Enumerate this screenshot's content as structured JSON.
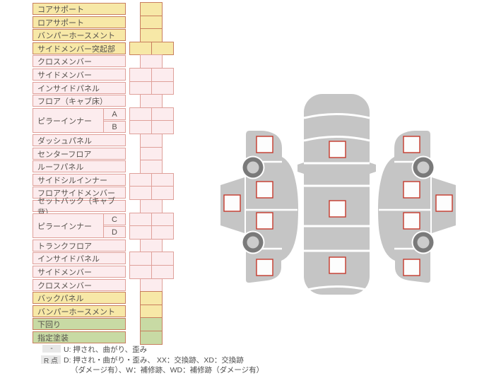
{
  "colors": {
    "yellow_bg": "#f7e8a7",
    "yellow_border": "#c87e5e",
    "pink_bg": "#fcecee",
    "pink_border": "#dfa09a",
    "green_bg": "#c8daa4",
    "green_border": "#c87e5e",
    "text": "#57524d",
    "checkpoint_border": "#c5392c",
    "car_gray": "#c5c5c5",
    "wheel_ring": "#7a7a7a",
    "wheel_hub": "#cccccc",
    "badge_bg": "#e8e8e8"
  },
  "checklist": {
    "rows": [
      {
        "label": "コアサポート",
        "color": "yellow",
        "cells": "single"
      },
      {
        "label": "ロアサポート",
        "color": "yellow",
        "cells": "single"
      },
      {
        "label": "バンパーホースメント",
        "color": "yellow",
        "cells": "single"
      },
      {
        "label": "サイドメンバー突起部",
        "color": "yellow",
        "cells": "double"
      },
      {
        "label": "クロスメンバー",
        "color": "pink",
        "cells": "single"
      },
      {
        "label": "サイドメンバー",
        "color": "pink",
        "cells": "double"
      },
      {
        "label": "インサイドパネル",
        "color": "pink",
        "cells": "double"
      },
      {
        "label": "フロア（キャブ床）",
        "color": "pink",
        "cells": "single"
      },
      {
        "label": "ピラーインナー",
        "sub": "A",
        "span_start": true,
        "color": "pink",
        "cells": "double"
      },
      {
        "label": "",
        "sub": "B",
        "color": "pink",
        "cells": "double"
      },
      {
        "label": "ダッシュパネル",
        "color": "pink",
        "cells": "single"
      },
      {
        "label": "センターフロア",
        "color": "pink",
        "cells": "single"
      },
      {
        "label": "ルーフパネル",
        "color": "pink",
        "cells": "single"
      },
      {
        "label": "サイドシルインナー",
        "color": "pink",
        "cells": "double"
      },
      {
        "label": "フロアサイドメンバー",
        "color": "pink",
        "cells": "double"
      },
      {
        "label": "セットバック（キャブ背）",
        "color": "pink",
        "cells": "single"
      },
      {
        "label": "ピラーインナー",
        "sub": "C",
        "span_start": true,
        "color": "pink",
        "cells": "double"
      },
      {
        "label": "",
        "sub": "D",
        "color": "pink",
        "cells": "double"
      },
      {
        "label": "トランクフロア",
        "color": "pink",
        "cells": "single"
      },
      {
        "label": "インサイドパネル",
        "color": "pink",
        "cells": "double"
      },
      {
        "label": "サイドメンバー",
        "color": "pink",
        "cells": "double"
      },
      {
        "label": "クロスメンバー",
        "color": "pink",
        "cells": "single"
      },
      {
        "label": "バックパネル",
        "color": "yellow",
        "cells": "single"
      },
      {
        "label": "バンパーホースメント",
        "color": "yellow",
        "cells": "single"
      },
      {
        "label": "下回り",
        "color": "green",
        "cells": "single"
      },
      {
        "label": "指定塗装",
        "color": "green",
        "cells": "single"
      }
    ]
  },
  "diagram": {
    "top_view_checkpoints": 3,
    "side_view_checkpoints": 5,
    "side_view_wheels": 2
  },
  "legend": {
    "badge1": "-",
    "line1": "U: 押され、曲がり、歪み",
    "badge2": "R 点",
    "line2": "D: 押され・曲がり・歪み、 XX：交換跡、XD：交換跡",
    "line3": "（ダメージ有）、W：補修跡、WD：補修跡（ダメージ有）"
  }
}
